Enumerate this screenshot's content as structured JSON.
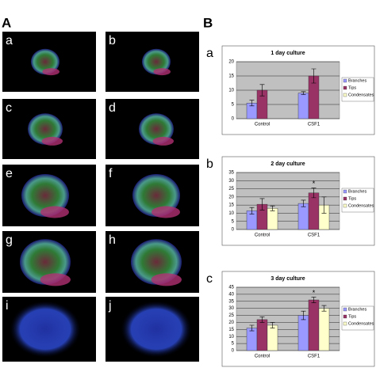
{
  "label_a": "A",
  "label_b": "B",
  "panel_a": {
    "images": [
      "a",
      "b",
      "c",
      "d",
      "e",
      "f",
      "g",
      "h",
      "i",
      "j"
    ]
  },
  "chart_data": [
    {
      "type": "bar",
      "panel_label": "a",
      "title": "1 day culture",
      "categories": [
        "Control",
        "CSF1"
      ],
      "series": [
        {
          "name": "Branches",
          "color": "#9999ff",
          "values": [
            5.5,
            9
          ],
          "errors": [
            1,
            0.5
          ]
        },
        {
          "name": "Tips",
          "color": "#993366",
          "values": [
            10,
            15
          ],
          "errors": [
            2,
            2.5
          ]
        },
        {
          "name": "Condensates",
          "color": "#ffffcc",
          "values": [
            null,
            null
          ],
          "errors": [
            null,
            null
          ]
        }
      ],
      "ylim": [
        0,
        20
      ],
      "yticks": [
        0,
        5,
        10,
        15,
        20
      ],
      "grid": true,
      "legend": "right"
    },
    {
      "type": "bar",
      "panel_label": "b",
      "title": "2 day culture",
      "categories": [
        "Control",
        "CSF1"
      ],
      "series": [
        {
          "name": "Branches",
          "color": "#9999ff",
          "values": [
            11.5,
            16
          ],
          "errors": [
            2,
            2
          ]
        },
        {
          "name": "Tips",
          "color": "#993366",
          "values": [
            15.5,
            22.5
          ],
          "errors": [
            3.5,
            3
          ]
        },
        {
          "name": "Condensates",
          "color": "#ffffcc",
          "values": [
            13,
            15
          ],
          "errors": [
            1.5,
            5
          ]
        }
      ],
      "ylim": [
        0,
        35
      ],
      "yticks": [
        0,
        5,
        10,
        15,
        20,
        25,
        30,
        35
      ],
      "grid": true,
      "legend": "right",
      "annotation": "*"
    },
    {
      "type": "bar",
      "panel_label": "c",
      "title": "3 day culture",
      "categories": [
        "Control",
        "CSF1"
      ],
      "series": [
        {
          "name": "Branches",
          "color": "#9999ff",
          "values": [
            16,
            25
          ],
          "errors": [
            2,
            3
          ]
        },
        {
          "name": "Tips",
          "color": "#993366",
          "values": [
            22,
            36
          ],
          "errors": [
            2,
            2
          ]
        },
        {
          "name": "Condensates",
          "color": "#ffffcc",
          "values": [
            18,
            30
          ],
          "errors": [
            2,
            2
          ]
        }
      ],
      "ylim": [
        0,
        45
      ],
      "yticks": [
        0,
        5,
        10,
        15,
        20,
        25,
        30,
        35,
        40,
        45
      ],
      "grid": true,
      "legend": "right",
      "annotation": "*"
    }
  ]
}
